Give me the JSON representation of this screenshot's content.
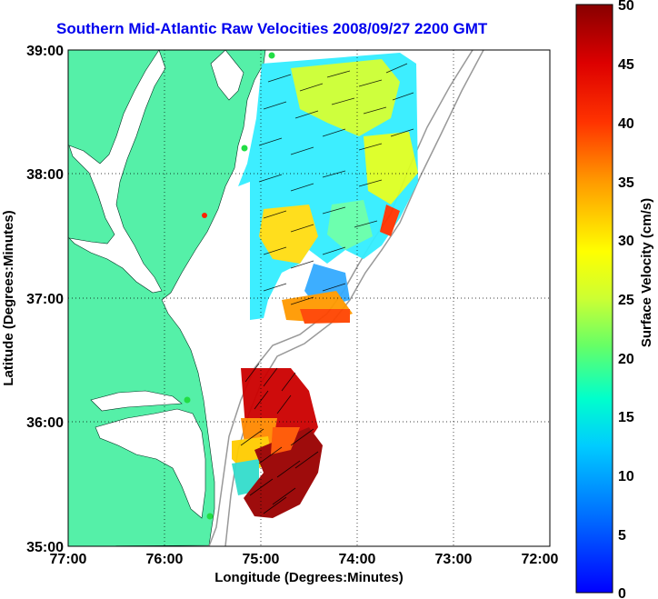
{
  "title": "Southern Mid-Atlantic Raw Velocities 2008/09/27 2200 GMT",
  "axes": {
    "xlabel": "Longitude (Degrees:Minutes)",
    "ylabel": "Latitude (Degrees:Minutes)",
    "xticks": [
      "77:00",
      "76:00",
      "75:00",
      "74:00",
      "73:00",
      "72:00"
    ],
    "yticks": [
      "39:00",
      "38:00",
      "37:00",
      "36:00",
      "35:00"
    ]
  },
  "colorbar": {
    "label": "Surface Velocity (cm/s)",
    "ticks": [
      "0",
      "5",
      "10",
      "15",
      "20",
      "25",
      "30",
      "35",
      "40",
      "45",
      "50"
    ],
    "range": [
      0,
      50
    ]
  },
  "colors": {
    "land": "#55f0a8",
    "title": "#0000ee",
    "station": "#22dd44",
    "station_red": "#ff2200"
  },
  "chart_data": {
    "type": "heatmap",
    "title": "Southern Mid-Atlantic Raw Velocities 2008/09/27 2200 GMT",
    "xlabel": "Longitude (Degrees:Minutes)",
    "ylabel": "Latitude (Degrees:Minutes)",
    "xlim": [
      -77,
      -72
    ],
    "ylim": [
      35,
      39
    ],
    "grid": true,
    "colorbar_label": "Surface Velocity (cm/s)",
    "colorbar_range": [
      0,
      50
    ]
  }
}
